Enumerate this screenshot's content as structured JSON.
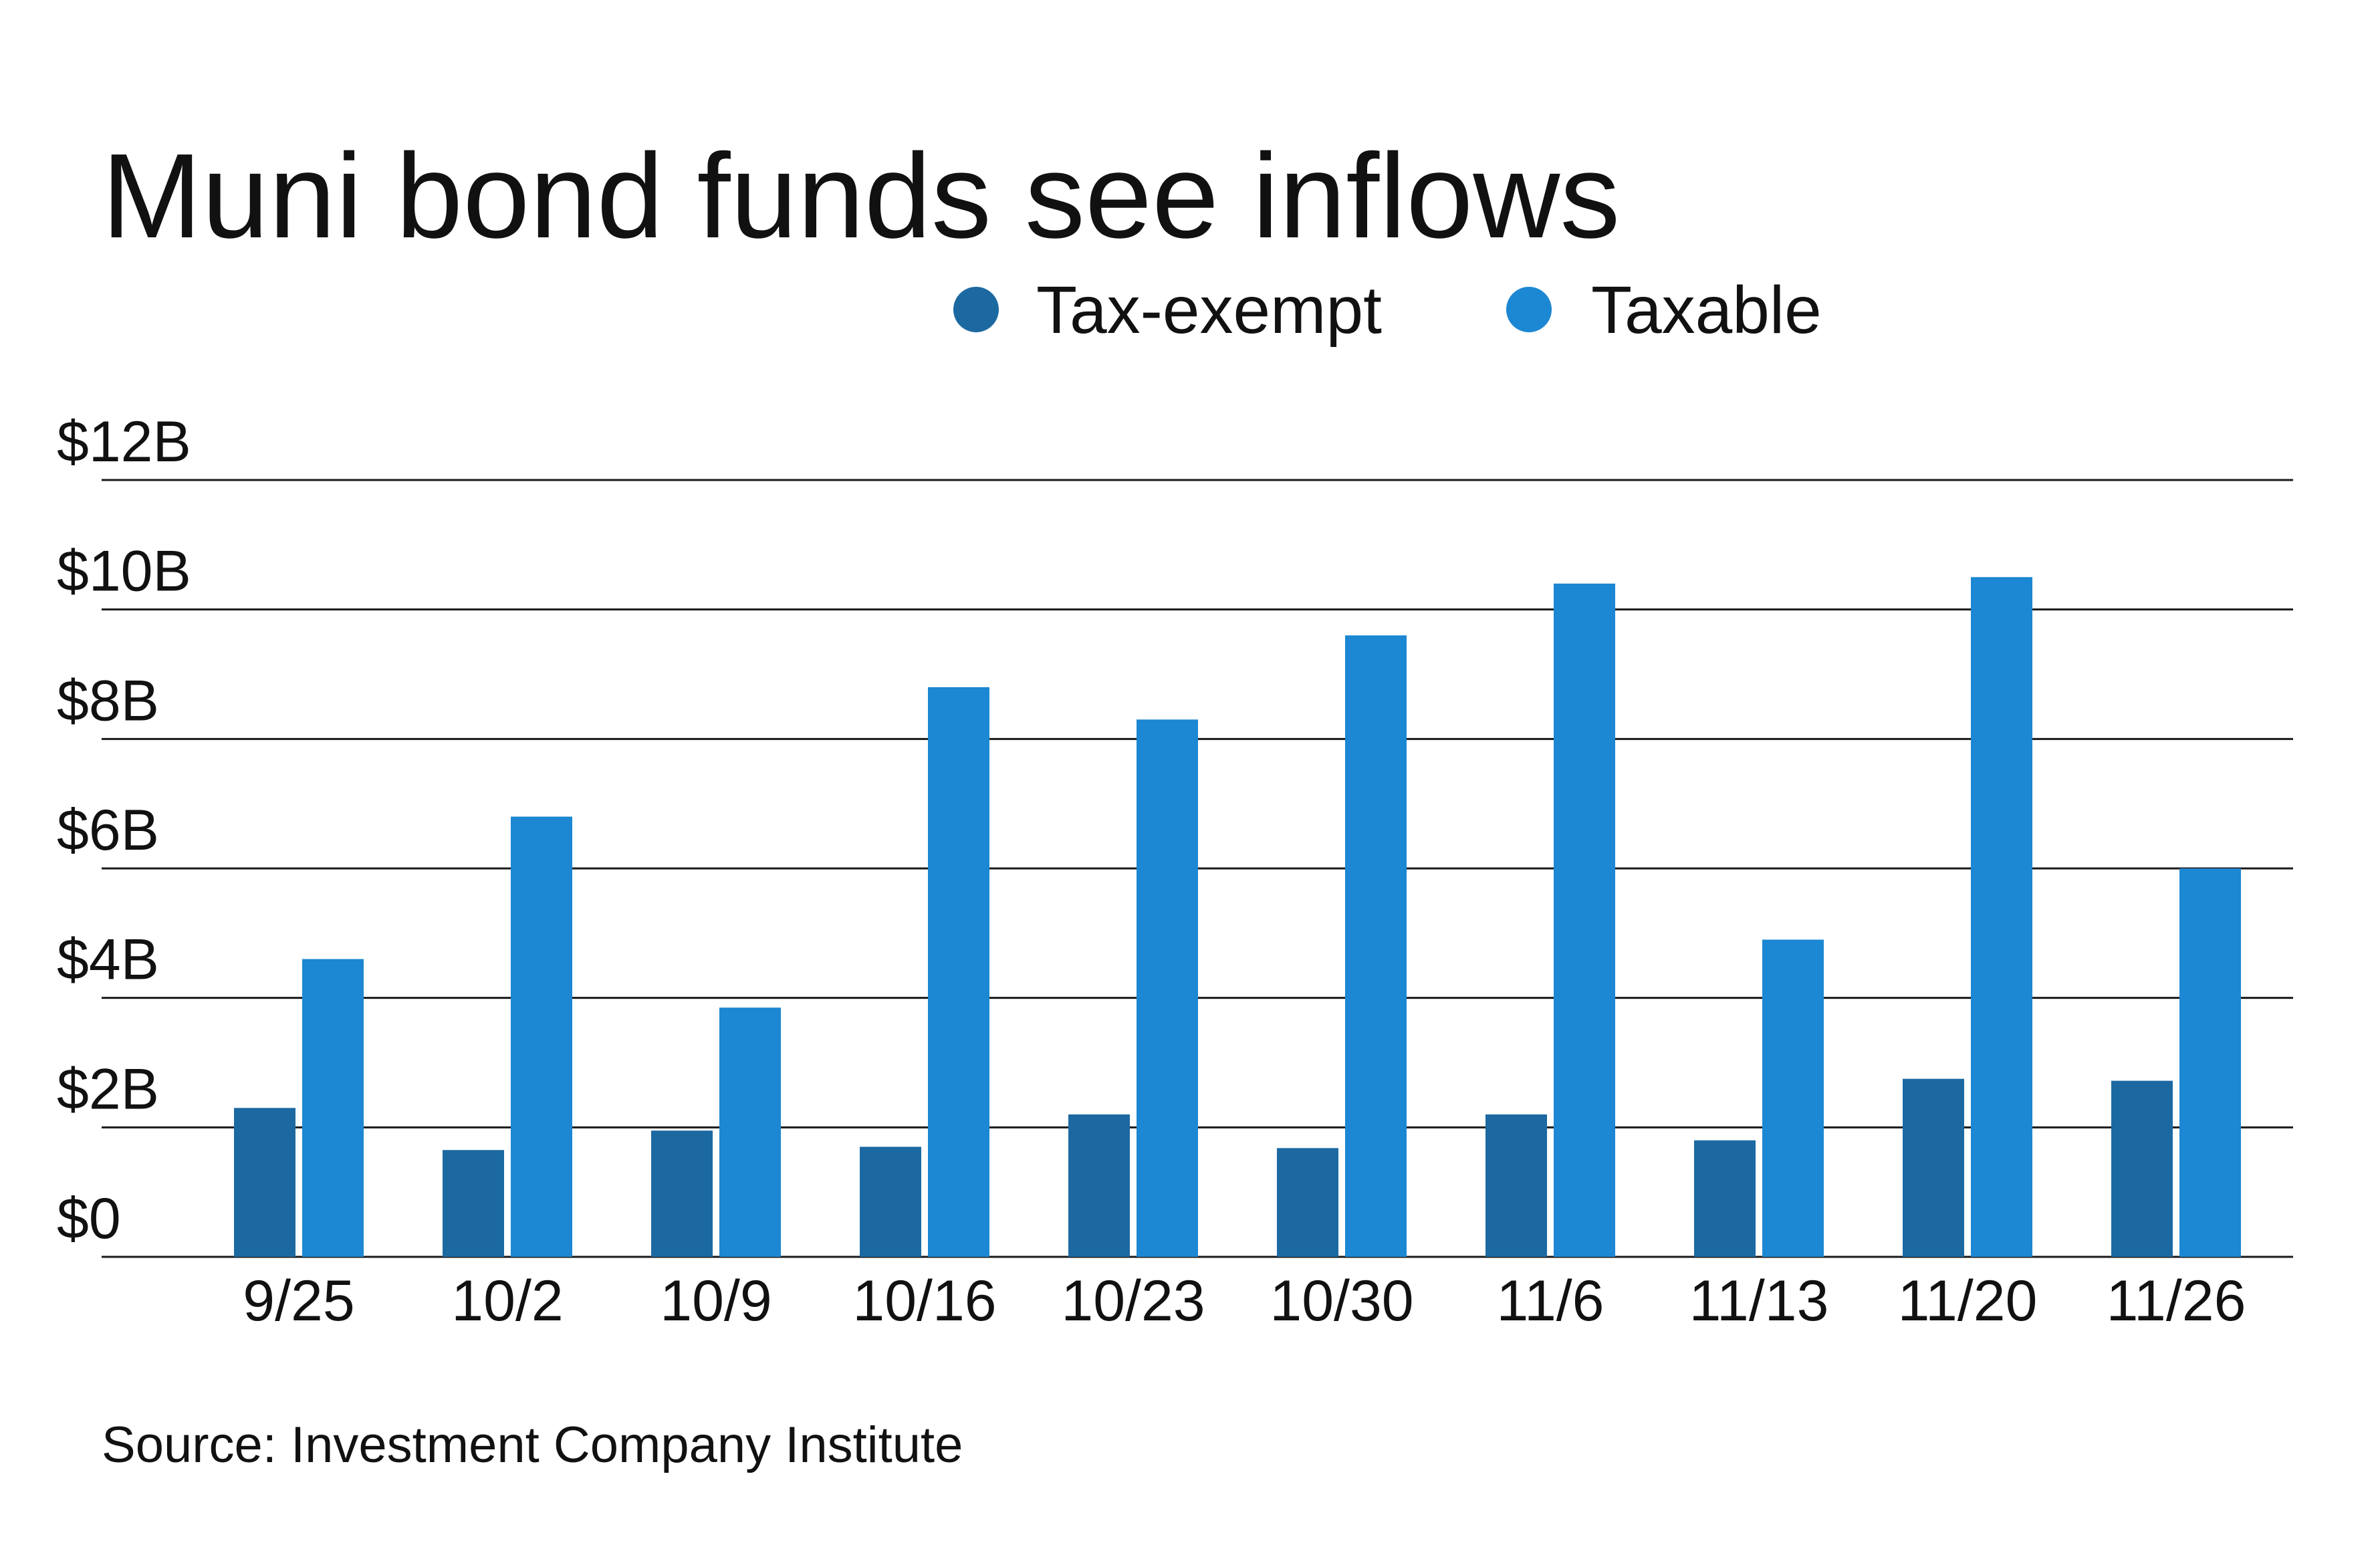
{
  "chart_data": {
    "type": "bar",
    "title": "Muni bond funds see inflows",
    "source": "Source: Investment Company Institute",
    "categories": [
      "9/25",
      "10/2",
      "10/9",
      "10/16",
      "10/23",
      "10/30",
      "11/6",
      "11/13",
      "11/20",
      "11/26"
    ],
    "series": [
      {
        "name": "Tax-exempt",
        "color": "#1c69a2",
        "values": [
          2.3,
          1.65,
          1.95,
          1.7,
          2.2,
          1.68,
          2.2,
          1.8,
          2.75,
          2.72
        ]
      },
      {
        "name": "Taxable",
        "color": "#1c87d2",
        "values": [
          4.6,
          6.8,
          3.85,
          8.8,
          8.3,
          9.6,
          10.4,
          4.9,
          10.5,
          6.0
        ]
      }
    ],
    "yticks": [
      "$0",
      "$2B",
      "$4B",
      "$6B",
      "$8B",
      "$10B",
      "$12B"
    ],
    "ylim": [
      0,
      12
    ],
    "ylabel": "",
    "xlabel": "",
    "grid": true,
    "legend_position": "top-right"
  }
}
